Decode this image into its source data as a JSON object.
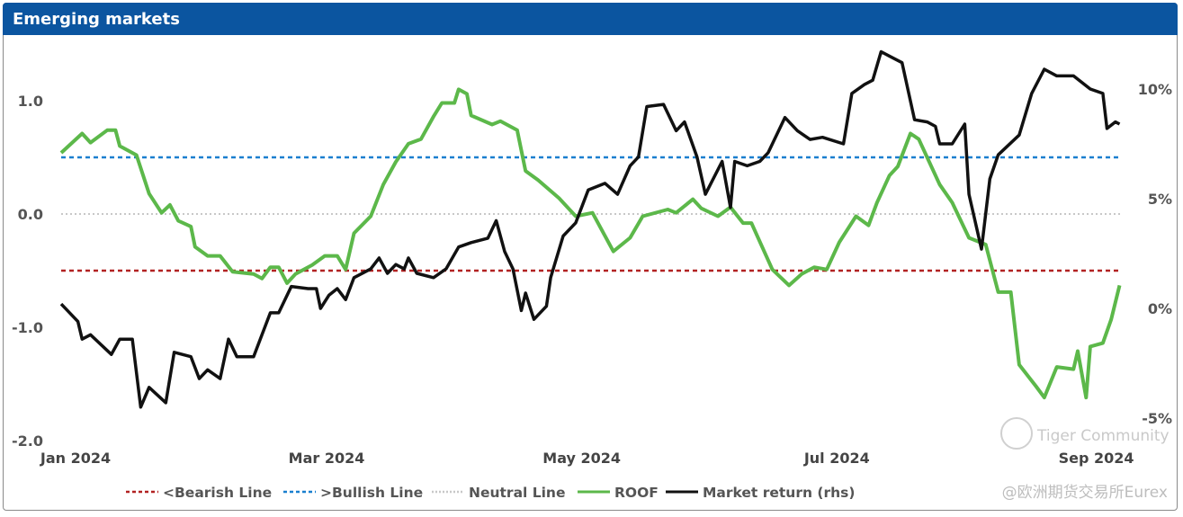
{
  "title": "Emerging markets",
  "chart_data": {
    "type": "line",
    "title": "Emerging markets",
    "x_unit": "days since 1 Jan 2024",
    "x_ticks": [
      {
        "day": 0,
        "label": "Jan 2024"
      },
      {
        "day": 60,
        "label": "Mar 2024"
      },
      {
        "day": 121,
        "label": "May 2024"
      },
      {
        "day": 182,
        "label": "Jul 2024"
      },
      {
        "day": 244,
        "label": "Sep 2024"
      }
    ],
    "y_left": {
      "range": [
        -2.0,
        1.4
      ],
      "ticks": [
        {
          "v": 1.0,
          "label": "1.0"
        },
        {
          "v": 0.0,
          "label": "0.0"
        },
        {
          "v": -1.0,
          "label": "-1.0"
        },
        {
          "v": -2.0,
          "label": "-2.0"
        }
      ]
    },
    "y_right": {
      "range": [
        -5.5,
        12
      ],
      "ticks": [
        {
          "v": 10,
          "label": "10%"
        },
        {
          "v": 5,
          "label": "5%"
        },
        {
          "v": 0,
          "label": "0%"
        },
        {
          "v": -5,
          "label": "-5%"
        }
      ]
    },
    "reference_lines": [
      {
        "name": "<Bearish Line",
        "value": -0.5,
        "color": "#b22222",
        "style": "dashed"
      },
      {
        "name": ">Bullish Line",
        "value": 0.5,
        "color": "#1a7fcf",
        "style": "dashed"
      },
      {
        "name": "Neutral Line",
        "value": 0.0,
        "color": "#c8c8c8",
        "style": "dotted"
      }
    ],
    "series": [
      {
        "name": "ROOF",
        "axis": "left",
        "color": "#5cb84a",
        "points": [
          [
            0,
            0.54
          ],
          [
            5,
            0.71
          ],
          [
            7,
            0.63
          ],
          [
            11,
            0.74
          ],
          [
            13,
            0.74
          ],
          [
            14,
            0.6
          ],
          [
            18,
            0.52
          ],
          [
            21,
            0.18
          ],
          [
            24,
            0.01
          ],
          [
            26,
            0.08
          ],
          [
            28,
            -0.06
          ],
          [
            31,
            -0.11
          ],
          [
            32,
            -0.29
          ],
          [
            35,
            -0.37
          ],
          [
            38,
            -0.37
          ],
          [
            41,
            -0.51
          ],
          [
            46,
            -0.53
          ],
          [
            48,
            -0.57
          ],
          [
            50,
            -0.47
          ],
          [
            52,
            -0.47
          ],
          [
            54,
            -0.61
          ],
          [
            56,
            -0.53
          ],
          [
            60,
            -0.45
          ],
          [
            63,
            -0.37
          ],
          [
            66,
            -0.37
          ],
          [
            68,
            -0.49
          ],
          [
            70,
            -0.17
          ],
          [
            74,
            -0.02
          ],
          [
            77,
            0.26
          ],
          [
            80,
            0.46
          ],
          [
            83,
            0.62
          ],
          [
            86,
            0.66
          ],
          [
            89,
            0.86
          ],
          [
            91,
            0.98
          ],
          [
            94,
            0.98
          ],
          [
            95,
            1.1
          ],
          [
            97,
            1.06
          ],
          [
            98,
            0.87
          ],
          [
            103,
            0.79
          ],
          [
            105,
            0.82
          ],
          [
            109,
            0.74
          ],
          [
            111,
            0.38
          ],
          [
            114,
            0.3
          ],
          [
            119,
            0.14
          ],
          [
            123,
            -0.02
          ],
          [
            127,
            0.01
          ],
          [
            132,
            -0.33
          ],
          [
            136,
            -0.21
          ],
          [
            139,
            -0.02
          ],
          [
            145,
            0.04
          ],
          [
            147,
            0.01
          ],
          [
            151,
            0.13
          ],
          [
            153,
            0.05
          ],
          [
            157,
            -0.02
          ],
          [
            160,
            0.06
          ],
          [
            163,
            -0.08
          ],
          [
            165,
            -0.08
          ],
          [
            170,
            -0.49
          ],
          [
            174,
            -0.63
          ],
          [
            177,
            -0.53
          ],
          [
            180,
            -0.47
          ],
          [
            183,
            -0.49
          ],
          [
            186,
            -0.25
          ],
          [
            190,
            -0.02
          ],
          [
            193,
            -0.1
          ],
          [
            195,
            0.1
          ],
          [
            198,
            0.34
          ],
          [
            200,
            0.42
          ],
          [
            203,
            0.71
          ],
          [
            205,
            0.66
          ],
          [
            207,
            0.5
          ],
          [
            210,
            0.26
          ],
          [
            213,
            0.1
          ],
          [
            217,
            -0.21
          ],
          [
            221,
            -0.27
          ],
          [
            224,
            -0.69
          ],
          [
            227,
            -0.69
          ],
          [
            229,
            -1.33
          ],
          [
            233,
            -1.52
          ],
          [
            235,
            -1.62
          ],
          [
            238,
            -1.35
          ],
          [
            242,
            -1.37
          ],
          [
            243,
            -1.21
          ],
          [
            245,
            -1.62
          ],
          [
            246,
            -1.17
          ],
          [
            249,
            -1.14
          ],
          [
            251,
            -0.93
          ],
          [
            253,
            -0.63
          ]
        ]
      },
      {
        "name": "Market return (rhs)",
        "axis": "right",
        "color": "#111111",
        "points": [
          [
            0,
            0.2
          ],
          [
            4,
            -0.6
          ],
          [
            5,
            -1.4
          ],
          [
            7,
            -1.2
          ],
          [
            12,
            -2.1
          ],
          [
            14,
            -1.4
          ],
          [
            17,
            -1.4
          ],
          [
            19,
            -4.5
          ],
          [
            21,
            -3.6
          ],
          [
            25,
            -4.3
          ],
          [
            27,
            -2.0
          ],
          [
            31,
            -2.2
          ],
          [
            33,
            -3.2
          ],
          [
            35,
            -2.8
          ],
          [
            38,
            -3.2
          ],
          [
            40,
            -1.4
          ],
          [
            42,
            -2.2
          ],
          [
            46,
            -2.2
          ],
          [
            50,
            -0.2
          ],
          [
            52,
            -0.2
          ],
          [
            55,
            1.0
          ],
          [
            59,
            0.9
          ],
          [
            61,
            0.9
          ],
          [
            62,
            0.0
          ],
          [
            64,
            0.6
          ],
          [
            66,
            0.9
          ],
          [
            68,
            0.4
          ],
          [
            70,
            1.4
          ],
          [
            74,
            1.8
          ],
          [
            76,
            2.3
          ],
          [
            78,
            1.6
          ],
          [
            80,
            2.0
          ],
          [
            82,
            1.8
          ],
          [
            83,
            2.3
          ],
          [
            85,
            1.6
          ],
          [
            89,
            1.4
          ],
          [
            92,
            1.8
          ],
          [
            95,
            2.8
          ],
          [
            98,
            3.0
          ],
          [
            102,
            3.2
          ],
          [
            104,
            4.0
          ],
          [
            106,
            2.6
          ],
          [
            108,
            1.8
          ],
          [
            110,
            -0.1
          ],
          [
            111,
            0.7
          ],
          [
            113,
            -0.5
          ],
          [
            116,
            0.1
          ],
          [
            117,
            1.4
          ],
          [
            120,
            3.3
          ],
          [
            123,
            3.9
          ],
          [
            126,
            5.4
          ],
          [
            130,
            5.7
          ],
          [
            133,
            5.2
          ],
          [
            136,
            6.5
          ],
          [
            138,
            6.9
          ],
          [
            140,
            9.2
          ],
          [
            144,
            9.3
          ],
          [
            147,
            8.1
          ],
          [
            149,
            8.5
          ],
          [
            152,
            6.9
          ],
          [
            154,
            5.2
          ],
          [
            158,
            6.7
          ],
          [
            160,
            4.6
          ],
          [
            161,
            6.7
          ],
          [
            164,
            6.5
          ],
          [
            167,
            6.7
          ],
          [
            169,
            7.1
          ],
          [
            173,
            8.7
          ],
          [
            176,
            8.1
          ],
          [
            179,
            7.7
          ],
          [
            182,
            7.8
          ],
          [
            187,
            7.5
          ],
          [
            189,
            9.8
          ],
          [
            192,
            10.2
          ],
          [
            194,
            10.4
          ],
          [
            196,
            11.7
          ],
          [
            198,
            11.5
          ],
          [
            201,
            11.2
          ],
          [
            204,
            8.6
          ],
          [
            207,
            8.5
          ],
          [
            209,
            8.3
          ],
          [
            210,
            7.5
          ],
          [
            213,
            7.5
          ],
          [
            216,
            8.4
          ],
          [
            217,
            5.2
          ],
          [
            220,
            2.7
          ],
          [
            222,
            5.9
          ],
          [
            224,
            7.0
          ],
          [
            229,
            7.9
          ],
          [
            232,
            9.8
          ],
          [
            235,
            10.9
          ],
          [
            238,
            10.6
          ],
          [
            242,
            10.6
          ],
          [
            246,
            10.0
          ],
          [
            249,
            9.8
          ],
          [
            250,
            8.2
          ],
          [
            252,
            8.5
          ],
          [
            253,
            8.4
          ]
        ]
      }
    ],
    "legend": {
      "position": "bottom",
      "entries": [
        "<Bearish Line",
        ">Bullish Line",
        "Neutral Line",
        "ROOF",
        "Market return (rhs)"
      ]
    },
    "grid": false
  },
  "watermark": {
    "line1": "Tiger Community",
    "line2": "@欧洲期货交易所Eurex"
  }
}
